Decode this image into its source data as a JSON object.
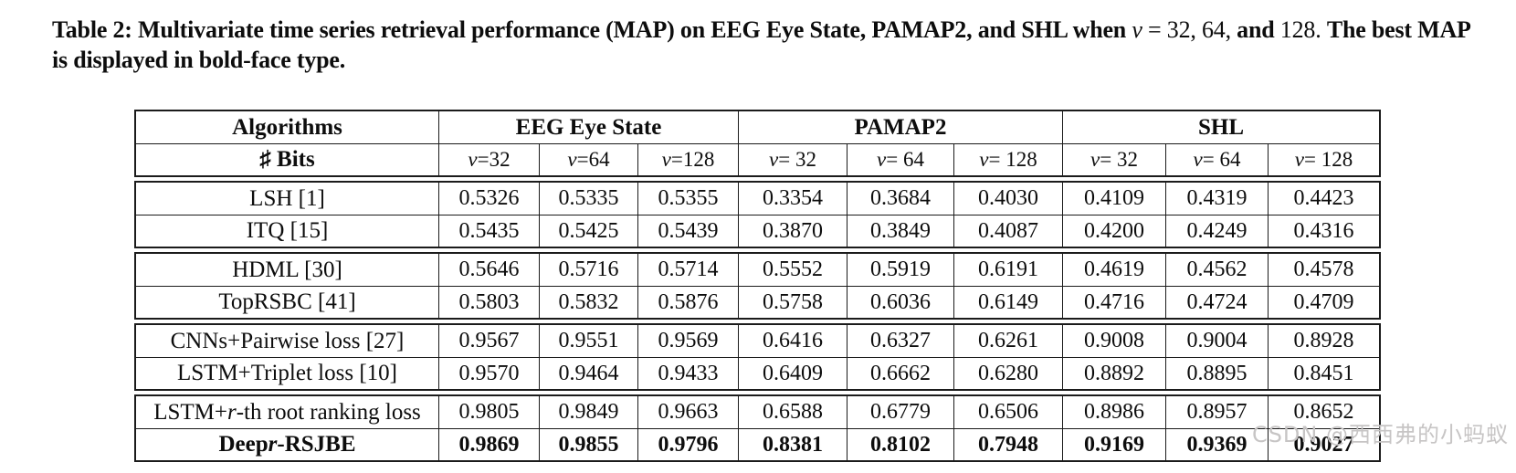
{
  "page": {
    "background": "#ffffff",
    "text_color": "#0d0d0d",
    "border_color": "#1b1b1b",
    "watermark": {
      "text": "CSDN @西西弗的小蚂蚁",
      "color": "#c7c5c5"
    }
  },
  "caption": {
    "segments": [
      {
        "text": "Table 2: Multivariate time series retrieval performance (MAP) on EEG Eye State, PAMAP2, and SHL when ",
        "bold": true,
        "italic": false
      },
      {
        "text": "v",
        "bold": false,
        "italic": true
      },
      {
        "text": " = 32, 64, ",
        "bold": false,
        "italic": false
      },
      {
        "text": "and ",
        "bold": true,
        "italic": false
      },
      {
        "text": "128. ",
        "bold": false,
        "italic": false
      },
      {
        "text": "The best MAP is displayed in bold-face type.",
        "bold": true,
        "italic": false
      }
    ]
  },
  "table": {
    "corner": {
      "row1": "Algorithms",
      "row2": "♯ Bits"
    },
    "groups": [
      {
        "name": "EEG Eye State",
        "cols": [
          "v =32",
          "v =64",
          "v =128"
        ]
      },
      {
        "name": "PAMAP2",
        "cols": [
          "v = 32",
          "v = 64",
          "v = 128"
        ]
      },
      {
        "name": "SHL",
        "cols": [
          "v = 32",
          "v = 64",
          "v = 128"
        ]
      }
    ],
    "sections": [
      {
        "rows": [
          {
            "name": "LSH [1]",
            "bold": false,
            "values": [
              "0.5326",
              "0.5335",
              "0.5355",
              "0.3354",
              "0.3684",
              "0.4030",
              "0.4109",
              "0.4319",
              "0.4423"
            ]
          },
          {
            "name": "ITQ [15]",
            "bold": false,
            "values": [
              "0.5435",
              "0.5425",
              "0.5439",
              "0.3870",
              "0.3849",
              "0.4087",
              "0.4200",
              "0.4249",
              "0.4316"
            ]
          }
        ]
      },
      {
        "rows": [
          {
            "name": "HDML [30]",
            "bold": false,
            "values": [
              "0.5646",
              "0.5716",
              "0.5714",
              "0.5552",
              "0.5919",
              "0.6191",
              "0.4619",
              "0.4562",
              "0.4578"
            ]
          },
          {
            "name": "TopRSBC [41]",
            "bold": false,
            "values": [
              "0.5803",
              "0.5832",
              "0.5876",
              "0.5758",
              "0.6036",
              "0.6149",
              "0.4716",
              "0.4724",
              "0.4709"
            ]
          }
        ]
      },
      {
        "rows": [
          {
            "name": "CNNs+Pairwise loss [27]",
            "bold": false,
            "values": [
              "0.9567",
              "0.9551",
              "0.9569",
              "0.6416",
              "0.6327",
              "0.6261",
              "0.9008",
              "0.9004",
              "0.8928"
            ]
          },
          {
            "name": "LSTM+Triplet loss [10]",
            "bold": false,
            "values": [
              "0.9570",
              "0.9464",
              "0.9433",
              "0.6409",
              "0.6662",
              "0.6280",
              "0.8892",
              "0.8895",
              "0.8451"
            ]
          }
        ]
      },
      {
        "rows": [
          {
            "name": "LSTM+*r*-th root ranking loss",
            "bold": false,
            "values": [
              "0.9805",
              "0.9849",
              "0.9663",
              "0.6588",
              "0.6779",
              "0.6506",
              "0.8986",
              "0.8957",
              "0.8652"
            ]
          },
          {
            "name": "Deep *r*-RSJBE",
            "bold": true,
            "values": [
              "0.9869",
              "0.9855",
              "0.9796",
              "0.8381",
              "0.8102",
              "0.7948",
              "0.9169",
              "0.9369",
              "0.9027"
            ]
          }
        ]
      }
    ]
  }
}
